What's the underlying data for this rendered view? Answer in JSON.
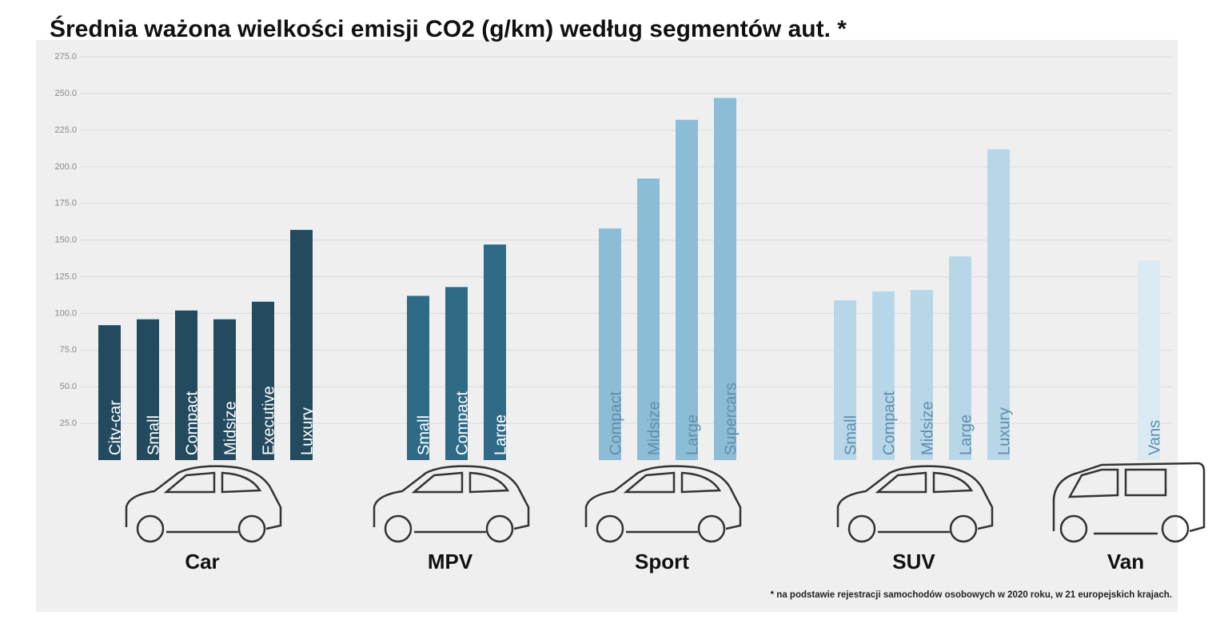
{
  "chart_data": {
    "type": "grouped-bar",
    "title": "Średnia ważona wielkości emisji CO2 (g/km) według segmentów aut. *",
    "note": "* na podstawie rejestracji samochodów osobowych w 2020 roku, w 21 europejskich krajach.",
    "ylim": [
      0,
      280
    ],
    "yticks": [
      {
        "value": 25,
        "label": "25.0"
      },
      {
        "value": 50,
        "label": "50.0"
      },
      {
        "value": 75,
        "label": "75.0"
      },
      {
        "value": 100,
        "label": "100.0"
      },
      {
        "value": 125,
        "label": "125.0"
      },
      {
        "value": 150,
        "label": "150.0"
      },
      {
        "value": 175,
        "label": "175.0"
      },
      {
        "value": 200,
        "label": "200.0"
      },
      {
        "value": 225,
        "label": "225.0"
      },
      {
        "value": 250,
        "label": "250.0"
      },
      {
        "value": 275,
        "label": "275.0"
      }
    ],
    "grid": true,
    "groups": [
      {
        "name": "Car",
        "color": "#234a5e",
        "categories": [
          "City-car",
          "Small",
          "Compact",
          "Midsize",
          "Executive",
          "Luxury"
        ],
        "values": [
          92,
          96,
          102,
          96,
          108,
          157
        ]
      },
      {
        "name": "MPV",
        "color": "#2f6a86",
        "categories": [
          "Small",
          "Compact",
          "Large"
        ],
        "values": [
          112,
          118,
          147
        ]
      },
      {
        "name": "Sport",
        "color": "#8cbdd7",
        "categories": [
          "Compact",
          "Midsize",
          "Large",
          "Supercars"
        ],
        "values": [
          158,
          192,
          232,
          247
        ]
      },
      {
        "name": "SUV",
        "color": "#b7d7e9",
        "categories": [
          "Small",
          "Compact",
          "Midsize",
          "Large",
          "Luxury"
        ],
        "values": [
          109,
          115,
          116,
          139,
          212
        ]
      },
      {
        "name": "Van",
        "color": "#d9eaf3",
        "categories": [
          "Vans"
        ],
        "values": [
          136
        ]
      }
    ]
  }
}
